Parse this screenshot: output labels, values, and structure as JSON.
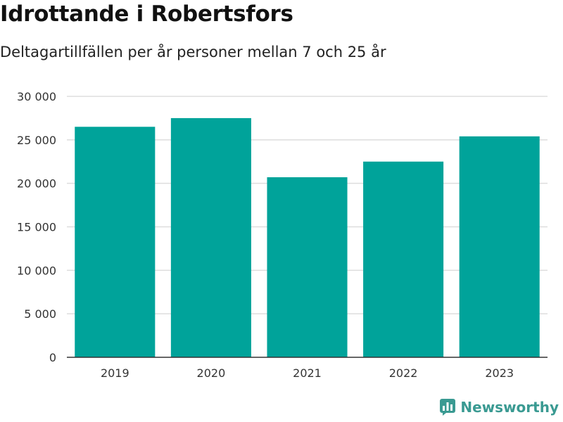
{
  "title": "Idrottande i Robertsfors",
  "subtitle": "Deltagartillfällen per år personer mellan 7 och 25 år",
  "brand": {
    "name": "Newsworthy",
    "icon": "newsworthy-logo-icon"
  },
  "colors": {
    "bar": "#00a39a",
    "grid": "#dddddd",
    "axis": "#333333",
    "brand": "#3a9a92"
  },
  "chart_data": {
    "type": "bar",
    "categories": [
      "2019",
      "2020",
      "2021",
      "2022",
      "2023"
    ],
    "values": [
      26500,
      27500,
      20700,
      22500,
      25400
    ],
    "ylim": [
      0,
      30000
    ],
    "yticks": [
      0,
      5000,
      10000,
      15000,
      20000,
      25000,
      30000
    ],
    "ytick_labels": [
      "0",
      "5 000",
      "10 000",
      "15 000",
      "20 000",
      "25 000",
      "30 000"
    ],
    "xlabel": "",
    "ylabel": "",
    "grid": true,
    "legend": "none"
  }
}
